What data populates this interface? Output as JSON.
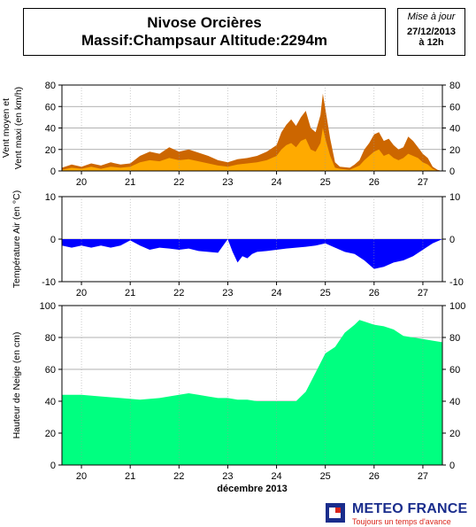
{
  "header": {
    "title_line1": "Nivose Orcières",
    "title_line2": "Massif:Champsaur Altitude:2294m"
  },
  "update": {
    "label": "Mise à jour",
    "date": "27/12/2013",
    "time": "à 12h"
  },
  "colors": {
    "wind_max": "#cc6600",
    "wind_mean": "#ffaa00",
    "temperature": "#0000ff",
    "snow": "#00ff80",
    "grid": "#999999"
  },
  "chart_data": [
    {
      "type": "area",
      "ylabel": "Vent moyen et Vent maxi (en km/h)",
      "ylim": [
        0,
        80
      ],
      "yticks": [
        0,
        20,
        40,
        60,
        80
      ],
      "x_tick_labels": [
        "20",
        "21",
        "22",
        "23",
        "24",
        "25",
        "26",
        "27"
      ],
      "x_range": [
        19.6,
        27.4
      ],
      "grid": true,
      "series": [
        {
          "x": [
            19.6,
            19.8,
            20.0,
            20.2,
            20.4,
            20.6,
            20.8,
            21.0,
            21.2,
            21.4,
            21.6,
            21.8,
            22.0,
            22.2,
            22.4,
            22.6,
            22.8,
            23.0,
            23.2,
            23.4,
            23.6,
            23.8,
            24.0,
            24.1,
            24.2,
            24.3,
            24.4,
            24.5,
            24.6,
            24.7,
            24.8,
            24.9,
            24.95,
            25.0,
            25.1,
            25.2,
            25.3,
            25.5,
            25.6,
            25.7,
            25.8,
            25.9,
            26.0,
            26.1,
            26.2,
            26.3,
            26.4,
            26.5,
            26.6,
            26.7,
            26.8,
            26.9,
            27.0,
            27.1,
            27.2,
            27.3,
            27.4
          ],
          "values": [
            3,
            6,
            4,
            7,
            5,
            8,
            6,
            7,
            14,
            18,
            16,
            22,
            18,
            20,
            17,
            14,
            10,
            8,
            11,
            12,
            14,
            18,
            24,
            36,
            43,
            48,
            42,
            50,
            56,
            40,
            36,
            52,
            72,
            58,
            30,
            8,
            4,
            3,
            6,
            10,
            20,
            26,
            34,
            36,
            28,
            30,
            24,
            20,
            22,
            32,
            28,
            22,
            16,
            12,
            4,
            1,
            0
          ]
        },
        {
          "x": [
            19.6,
            19.8,
            20.0,
            20.2,
            20.4,
            20.6,
            20.8,
            21.0,
            21.2,
            21.4,
            21.6,
            21.8,
            22.0,
            22.2,
            22.4,
            22.6,
            22.8,
            23.0,
            23.2,
            23.4,
            23.6,
            23.8,
            24.0,
            24.1,
            24.2,
            24.3,
            24.4,
            24.5,
            24.6,
            24.7,
            24.8,
            24.9,
            24.95,
            25.0,
            25.1,
            25.2,
            25.3,
            25.5,
            25.6,
            25.7,
            25.8,
            25.9,
            26.0,
            26.1,
            26.2,
            26.3,
            26.4,
            26.5,
            26.6,
            26.7,
            26.8,
            26.9,
            27.0,
            27.1,
            27.2,
            27.3,
            27.4
          ],
          "values": [
            1,
            3,
            2,
            4,
            2,
            4,
            3,
            4,
            8,
            10,
            9,
            12,
            10,
            11,
            9,
            7,
            5,
            4,
            6,
            7,
            8,
            10,
            14,
            20,
            24,
            26,
            22,
            28,
            30,
            20,
            18,
            26,
            40,
            30,
            14,
            3,
            2,
            1,
            3,
            5,
            10,
            14,
            18,
            20,
            14,
            16,
            12,
            10,
            12,
            16,
            14,
            12,
            8,
            6,
            2,
            0,
            0
          ]
        }
      ]
    },
    {
      "type": "area",
      "ylabel": "Température Air (en °C)",
      "ylim": [
        -10,
        10
      ],
      "yticks": [
        -10,
        0,
        10
      ],
      "x_tick_labels": [
        "20",
        "21",
        "22",
        "23",
        "24",
        "25",
        "26",
        "27"
      ],
      "x_range": [
        19.6,
        27.4
      ],
      "grid": true,
      "series": [
        {
          "x": [
            19.6,
            19.8,
            20.0,
            20.2,
            20.4,
            20.6,
            20.8,
            21.0,
            21.2,
            21.4,
            21.6,
            21.8,
            22.0,
            22.2,
            22.4,
            22.6,
            22.8,
            23.0,
            23.1,
            23.2,
            23.3,
            23.4,
            23.5,
            23.6,
            23.8,
            24.0,
            24.2,
            24.4,
            24.6,
            24.8,
            25.0,
            25.2,
            25.4,
            25.6,
            25.8,
            26.0,
            26.2,
            26.4,
            26.6,
            26.8,
            27.0,
            27.2,
            27.4
          ],
          "values": [
            -1.5,
            -2,
            -1.5,
            -2,
            -1.5,
            -2,
            -1.5,
            -0.3,
            -1.5,
            -2.5,
            -2,
            -2.2,
            -2.5,
            -2.2,
            -2.8,
            -3,
            -3.2,
            0,
            -3,
            -5.5,
            -4,
            -4.5,
            -3.5,
            -3,
            -2.8,
            -2.5,
            -2.2,
            -2,
            -1.8,
            -1.5,
            -1,
            -2,
            -3,
            -3.5,
            -5,
            -7,
            -6.5,
            -5.5,
            -5,
            -4,
            -2.5,
            -1,
            0
          ]
        }
      ]
    },
    {
      "type": "area",
      "ylabel": "Hauteur de Neige (en cm)",
      "xlabel": "décembre 2013",
      "ylim": [
        0,
        100
      ],
      "yticks": [
        0,
        20,
        40,
        60,
        80,
        100
      ],
      "x_tick_labels": [
        "20",
        "21",
        "22",
        "23",
        "24",
        "25",
        "26",
        "27"
      ],
      "x_range": [
        19.6,
        27.4
      ],
      "grid": true,
      "series": [
        {
          "x": [
            19.6,
            20.0,
            20.4,
            20.8,
            21.2,
            21.6,
            22.0,
            22.2,
            22.4,
            22.6,
            22.8,
            23.0,
            23.2,
            23.4,
            23.6,
            23.8,
            24.0,
            24.2,
            24.4,
            24.6,
            24.8,
            25.0,
            25.2,
            25.4,
            25.6,
            25.7,
            25.8,
            26.0,
            26.2,
            26.4,
            26.6,
            26.8,
            27.0,
            27.2,
            27.4
          ],
          "values": [
            44,
            44,
            43,
            42,
            41,
            42,
            44,
            45,
            44,
            43,
            42,
            42,
            41,
            41,
            40,
            40,
            40,
            40,
            40,
            46,
            58,
            70,
            74,
            83,
            88,
            91,
            90,
            88,
            87,
            85,
            81,
            80,
            79,
            78,
            77
          ]
        }
      ]
    }
  ],
  "logo": {
    "brand": "METEO FRANCE",
    "slogan": "Toujours un temps d'avance"
  }
}
